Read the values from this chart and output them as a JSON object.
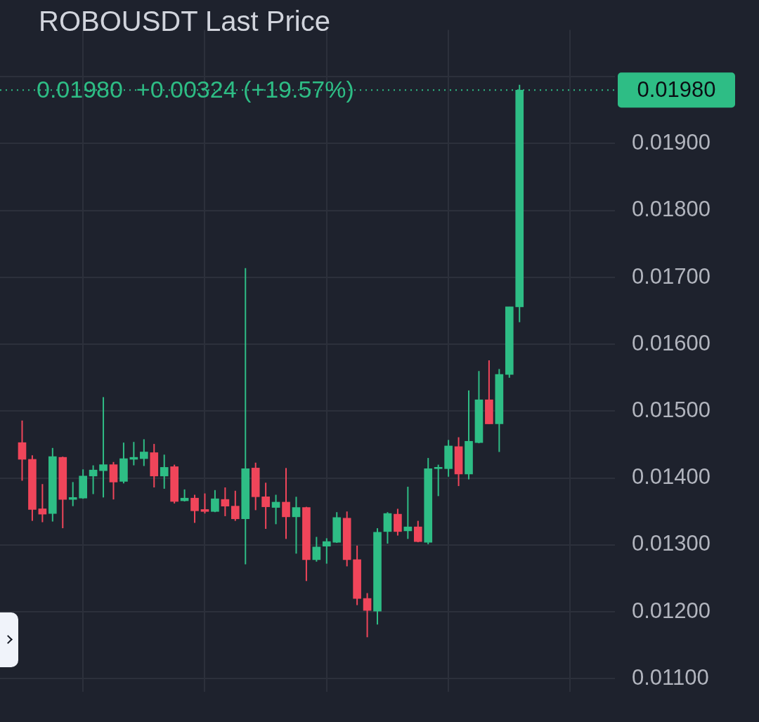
{
  "chart_data": {
    "type": "candlestick",
    "title": "ROBOUSDT Last Price",
    "annotations": [
      "0.01980  +0.00324 (+19.57%)"
    ],
    "categories": [
      null,
      null,
      null,
      null,
      null,
      null,
      null,
      null,
      null,
      null,
      null,
      null,
      null,
      null,
      null,
      null,
      null,
      null,
      null,
      null,
      null,
      null,
      null,
      null,
      null,
      null,
      null,
      null,
      null,
      null,
      null,
      null,
      null,
      null,
      null,
      null,
      null,
      null,
      null,
      null,
      null,
      null,
      null,
      null,
      null,
      null,
      null,
      null,
      null,
      null
    ],
    "ohlc": [
      [
        0.01453,
        0.01486,
        0.01396,
        0.01428
      ],
      [
        0.01428,
        0.01434,
        0.01336,
        0.01353
      ],
      [
        0.01354,
        0.01391,
        0.01334,
        0.01346
      ],
      [
        0.01347,
        0.01445,
        0.01335,
        0.01432
      ],
      [
        0.01431,
        0.01432,
        0.01325,
        0.01368
      ],
      [
        0.01368,
        0.01394,
        0.01358,
        0.01371
      ],
      [
        0.0137,
        0.01413,
        0.01369,
        0.01403
      ],
      [
        0.01403,
        0.01419,
        0.01376,
        0.01412
      ],
      [
        0.01411,
        0.01521,
        0.01371,
        0.0142
      ],
      [
        0.0142,
        0.01424,
        0.01368,
        0.01394
      ],
      [
        0.01395,
        0.01453,
        0.01392,
        0.01429
      ],
      [
        0.01428,
        0.01454,
        0.01419,
        0.01431
      ],
      [
        0.01429,
        0.01458,
        0.01418,
        0.01439
      ],
      [
        0.01438,
        0.01451,
        0.01386,
        0.01403
      ],
      [
        0.01403,
        0.01435,
        0.01384,
        0.01416
      ],
      [
        0.01417,
        0.0142,
        0.01362,
        0.01365
      ],
      [
        0.01366,
        0.01383,
        0.01365,
        0.0137
      ],
      [
        0.0137,
        0.01375,
        0.01333,
        0.01351
      ],
      [
        0.01353,
        0.01377,
        0.01347,
        0.0135
      ],
      [
        0.0135,
        0.01382,
        0.01349,
        0.01369
      ],
      [
        0.01368,
        0.01386,
        0.01343,
        0.01358
      ],
      [
        0.01358,
        0.01381,
        0.01336,
        0.01339
      ],
      [
        0.01339,
        0.01714,
        0.01271,
        0.01414
      ],
      [
        0.01415,
        0.01423,
        0.01352,
        0.01372
      ],
      [
        0.01372,
        0.01393,
        0.01324,
        0.01357
      ],
      [
        0.01356,
        0.01375,
        0.01331,
        0.01364
      ],
      [
        0.01364,
        0.01415,
        0.01309,
        0.01342
      ],
      [
        0.01342,
        0.01372,
        0.01287,
        0.01356
      ],
      [
        0.01356,
        0.01357,
        0.01246,
        0.01278
      ],
      [
        0.01278,
        0.01312,
        0.01275,
        0.01297
      ],
      [
        0.01298,
        0.0131,
        0.01272,
        0.01305
      ],
      [
        0.01304,
        0.01349,
        0.01303,
        0.01341
      ],
      [
        0.0134,
        0.0135,
        0.01268,
        0.01278
      ],
      [
        0.01278,
        0.01299,
        0.0121,
        0.0122
      ],
      [
        0.0122,
        0.01228,
        0.01162,
        0.01202
      ],
      [
        0.01201,
        0.01325,
        0.01181,
        0.01319
      ],
      [
        0.0132,
        0.01349,
        0.01302,
        0.01347
      ],
      [
        0.01346,
        0.01354,
        0.01314,
        0.0132
      ],
      [
        0.01321,
        0.01387,
        0.01309,
        0.01327
      ],
      [
        0.01327,
        0.01336,
        0.01304,
        0.01305
      ],
      [
        0.01304,
        0.0143,
        0.01301,
        0.01414
      ],
      [
        0.01414,
        0.0142,
        0.01373,
        0.01416
      ],
      [
        0.01414,
        0.01457,
        0.01402,
        0.01448
      ],
      [
        0.01447,
        0.01461,
        0.01388,
        0.01406
      ],
      [
        0.01406,
        0.01531,
        0.01398,
        0.01455
      ],
      [
        0.01453,
        0.0156,
        0.01452,
        0.01517
      ],
      [
        0.01517,
        0.01576,
        0.01481,
        0.01481
      ],
      [
        0.01481,
        0.01563,
        0.01439,
        0.01555
      ],
      [
        0.01555,
        0.01656,
        0.0155,
        0.01656
      ],
      [
        0.01656,
        0.01988,
        0.01633,
        0.0198
      ]
    ],
    "colors": [
      "#f0455a",
      "#f0455a",
      "#f0455a",
      "#2ebd85",
      "#f0455a",
      "#2ebd85",
      "#2ebd85",
      "#2ebd85",
      "#2ebd85",
      "#f0455a",
      "#2ebd85",
      "#2ebd85",
      "#2ebd85",
      "#f0455a",
      "#2ebd85",
      "#f0455a",
      "#2ebd85",
      "#f0455a",
      "#f0455a",
      "#2ebd85",
      "#f0455a",
      "#f0455a",
      "#2ebd85",
      "#f0455a",
      "#f0455a",
      "#2ebd85",
      "#f0455a",
      "#2ebd85",
      "#f0455a",
      "#2ebd85",
      "#2ebd85",
      "#2ebd85",
      "#f0455a",
      "#f0455a",
      "#f0455a",
      "#2ebd85",
      "#2ebd85",
      "#f0455a",
      "#2ebd85",
      "#f0455a",
      "#2ebd85",
      "#2ebd85",
      "#2ebd85",
      "#f0455a",
      "#2ebd85",
      "#2ebd85",
      "#f0455a",
      "#2ebd85",
      "#2ebd85",
      "#2ebd85"
    ],
    "ylim": [
      0.0108,
      0.0207
    ],
    "yticks": [
      {
        "value": 0.011,
        "label": "0.01100"
      },
      {
        "value": 0.012,
        "label": "0.01200"
      },
      {
        "value": 0.013,
        "label": "0.01300"
      },
      {
        "value": 0.014,
        "label": "0.01400"
      },
      {
        "value": 0.015,
        "label": "0.01500"
      },
      {
        "value": 0.016,
        "label": "0.01600"
      },
      {
        "value": 0.017,
        "label": "0.01700"
      },
      {
        "value": 0.018,
        "label": "0.01800"
      },
      {
        "value": 0.019,
        "label": "0.01900"
      },
      {
        "value": 0.02,
        "label": null
      }
    ],
    "ref_lines": [
      {
        "axis": "y",
        "value": 0.0198,
        "label": "0.01980",
        "color": "#2ebd85",
        "line_style": "dotted"
      }
    ],
    "grid": true,
    "legend": false,
    "tick_labels": "y"
  }
}
